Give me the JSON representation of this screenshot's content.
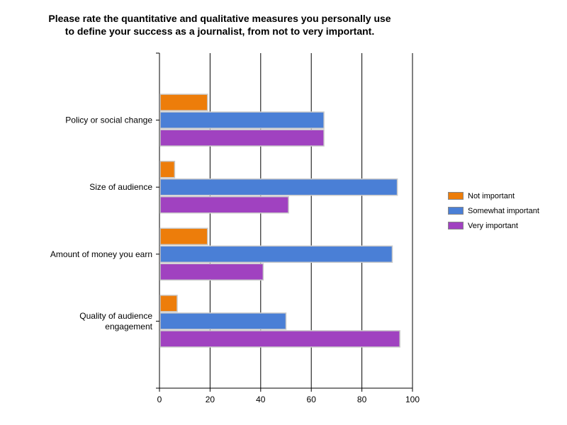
{
  "chart_data": {
    "type": "bar",
    "orientation": "horizontal",
    "title_lines": [
      "Please rate the quantitative and qualitative measures you personally use",
      "to define your success as a journalist, from not to very important."
    ],
    "categories": [
      [
        "Policy or social change"
      ],
      [
        "Size of audience"
      ],
      [
        "Amount of money you earn"
      ],
      [
        "Quality of audience",
        "engagement"
      ]
    ],
    "series": [
      {
        "name": "Not important",
        "color": "#ed7d0a",
        "values": [
          19,
          6,
          19,
          7
        ]
      },
      {
        "name": "Somewhat important",
        "color": "#4a7fd6",
        "values": [
          65,
          94,
          92,
          50
        ]
      },
      {
        "name": "Very important",
        "color": "#a042c0",
        "values": [
          65,
          51,
          41,
          95
        ]
      }
    ],
    "xlim": [
      0,
      100
    ],
    "xticks": [
      "0",
      "20",
      "40",
      "60",
      "80",
      "100"
    ],
    "grid": true,
    "legend_position": "right"
  }
}
